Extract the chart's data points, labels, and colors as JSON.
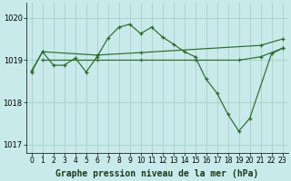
{
  "title": "Graphe pression niveau de la mer (hPa)",
  "bg_color": "#c8eaea",
  "grid_color": "#a0ccbb",
  "line_color": "#2d6a2d",
  "ylim": [
    1016.8,
    1020.35
  ],
  "yticks": [
    1017,
    1018,
    1019,
    1020
  ],
  "hours": [
    0,
    1,
    2,
    3,
    4,
    5,
    6,
    7,
    8,
    9,
    10,
    11,
    12,
    13,
    14,
    15,
    16,
    17,
    18,
    19,
    20,
    21,
    22,
    23
  ],
  "line1_x": [
    0,
    1,
    2,
    3,
    4,
    5,
    6,
    7,
    8,
    9,
    10,
    11,
    12,
    13,
    14,
    15,
    16,
    17,
    18,
    19,
    20,
    22,
    23
  ],
  "line1_y": [
    1018.75,
    1019.2,
    1018.88,
    1018.88,
    1019.05,
    1018.72,
    1019.08,
    1019.52,
    1019.78,
    1019.85,
    1019.63,
    1019.78,
    1019.55,
    1019.38,
    1019.2,
    1019.08,
    1018.55,
    1018.22,
    1017.72,
    1017.32,
    1017.62,
    1019.15,
    1019.28
  ],
  "line2_x": [
    1,
    6,
    10,
    15,
    19,
    21,
    23
  ],
  "line2_y": [
    1019.0,
    1019.0,
    1019.0,
    1019.0,
    1019.0,
    1019.08,
    1019.28
  ],
  "line3_x": [
    0,
    1,
    6,
    10,
    21,
    23
  ],
  "line3_y": [
    1018.72,
    1019.2,
    1019.12,
    1019.18,
    1019.35,
    1019.5
  ],
  "title_fontsize": 7,
  "tick_fontsize": 5.5,
  "ylabel_fontsize": 6
}
